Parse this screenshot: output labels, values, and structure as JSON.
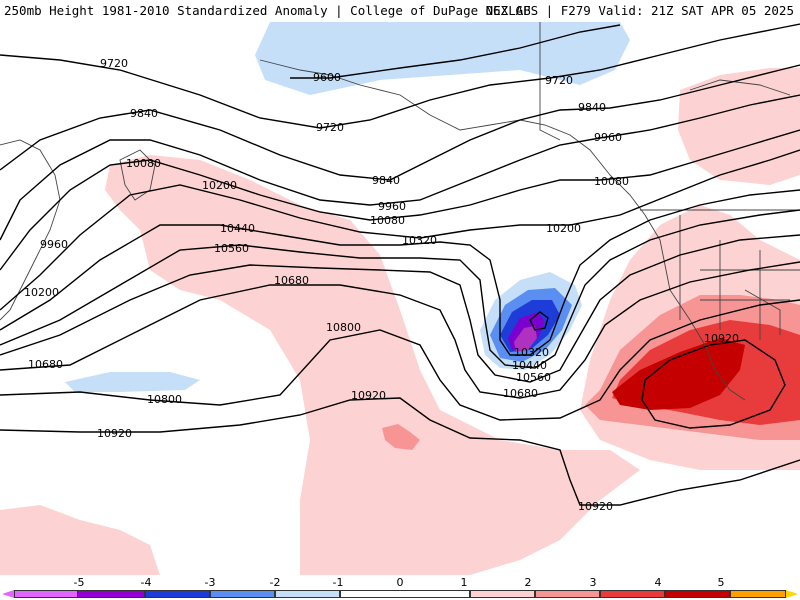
{
  "header": {
    "left_title": "250mb Height 1981-2010 Standardized Anomaly | College of DuPage NEXLAB",
    "right_title": "06Z GFS | F279 Valid: 21Z SAT APR 05 2025"
  },
  "colors": {
    "neg5": "#b030c0",
    "neg4": "#7b00d0",
    "neg3": "#1e3cd8",
    "neg2": "#5a8ef0",
    "neg1": "#c6dff8",
    "zero": "#ffffff",
    "pos1": "#fcd2d2",
    "pos2": "#f79595",
    "pos3": "#e83c3c",
    "pos4": "#c40000",
    "pos5": "#ffa000",
    "contour": "#000000",
    "coast": "#444444"
  },
  "contour_labels": [
    {
      "text": "9720",
      "id": "c9720-a"
    },
    {
      "text": "9600",
      "id": "c9600"
    },
    {
      "text": "9720",
      "id": "c9720-b"
    },
    {
      "text": "9720",
      "id": "c9720-c"
    },
    {
      "text": "9840",
      "id": "c9840-a"
    },
    {
      "text": "9840",
      "id": "c9840-b"
    },
    {
      "text": "9840",
      "id": "c9840-c"
    },
    {
      "text": "9960",
      "id": "c9960-a"
    },
    {
      "text": "9960",
      "id": "c9960-b"
    },
    {
      "text": "9960",
      "id": "c9960-c"
    },
    {
      "text": "10080",
      "id": "c10080-a"
    },
    {
      "text": "10080",
      "id": "c10080-b"
    },
    {
      "text": "10080",
      "id": "c10080-c"
    },
    {
      "text": "10200",
      "id": "c10200-a"
    },
    {
      "text": "10200",
      "id": "c10200-b"
    },
    {
      "text": "10200",
      "id": "c10200-c"
    },
    {
      "text": "10320",
      "id": "c10320-a"
    },
    {
      "text": "10320",
      "id": "c10320-b"
    },
    {
      "text": "10440",
      "id": "c10440-a"
    },
    {
      "text": "10440",
      "id": "c10440-b"
    },
    {
      "text": "10560",
      "id": "c10560-a"
    },
    {
      "text": "10560",
      "id": "c10560-b"
    },
    {
      "text": "10680",
      "id": "c10680-a"
    },
    {
      "text": "10680",
      "id": "c10680-b"
    },
    {
      "text": "10680",
      "id": "c10680-c"
    },
    {
      "text": "10800",
      "id": "c10800-a"
    },
    {
      "text": "10800",
      "id": "c10800-b"
    },
    {
      "text": "10920",
      "id": "c10920-a"
    },
    {
      "text": "10920",
      "id": "c10920-b"
    },
    {
      "text": "10920",
      "id": "c10920-c"
    },
    {
      "text": "10920",
      "id": "c10920-d"
    }
  ],
  "colorbar": {
    "ticks": [
      "-5",
      "-4",
      "-3",
      "-2",
      "-1",
      "0",
      "1",
      "2",
      "3",
      "4",
      "5"
    ]
  }
}
